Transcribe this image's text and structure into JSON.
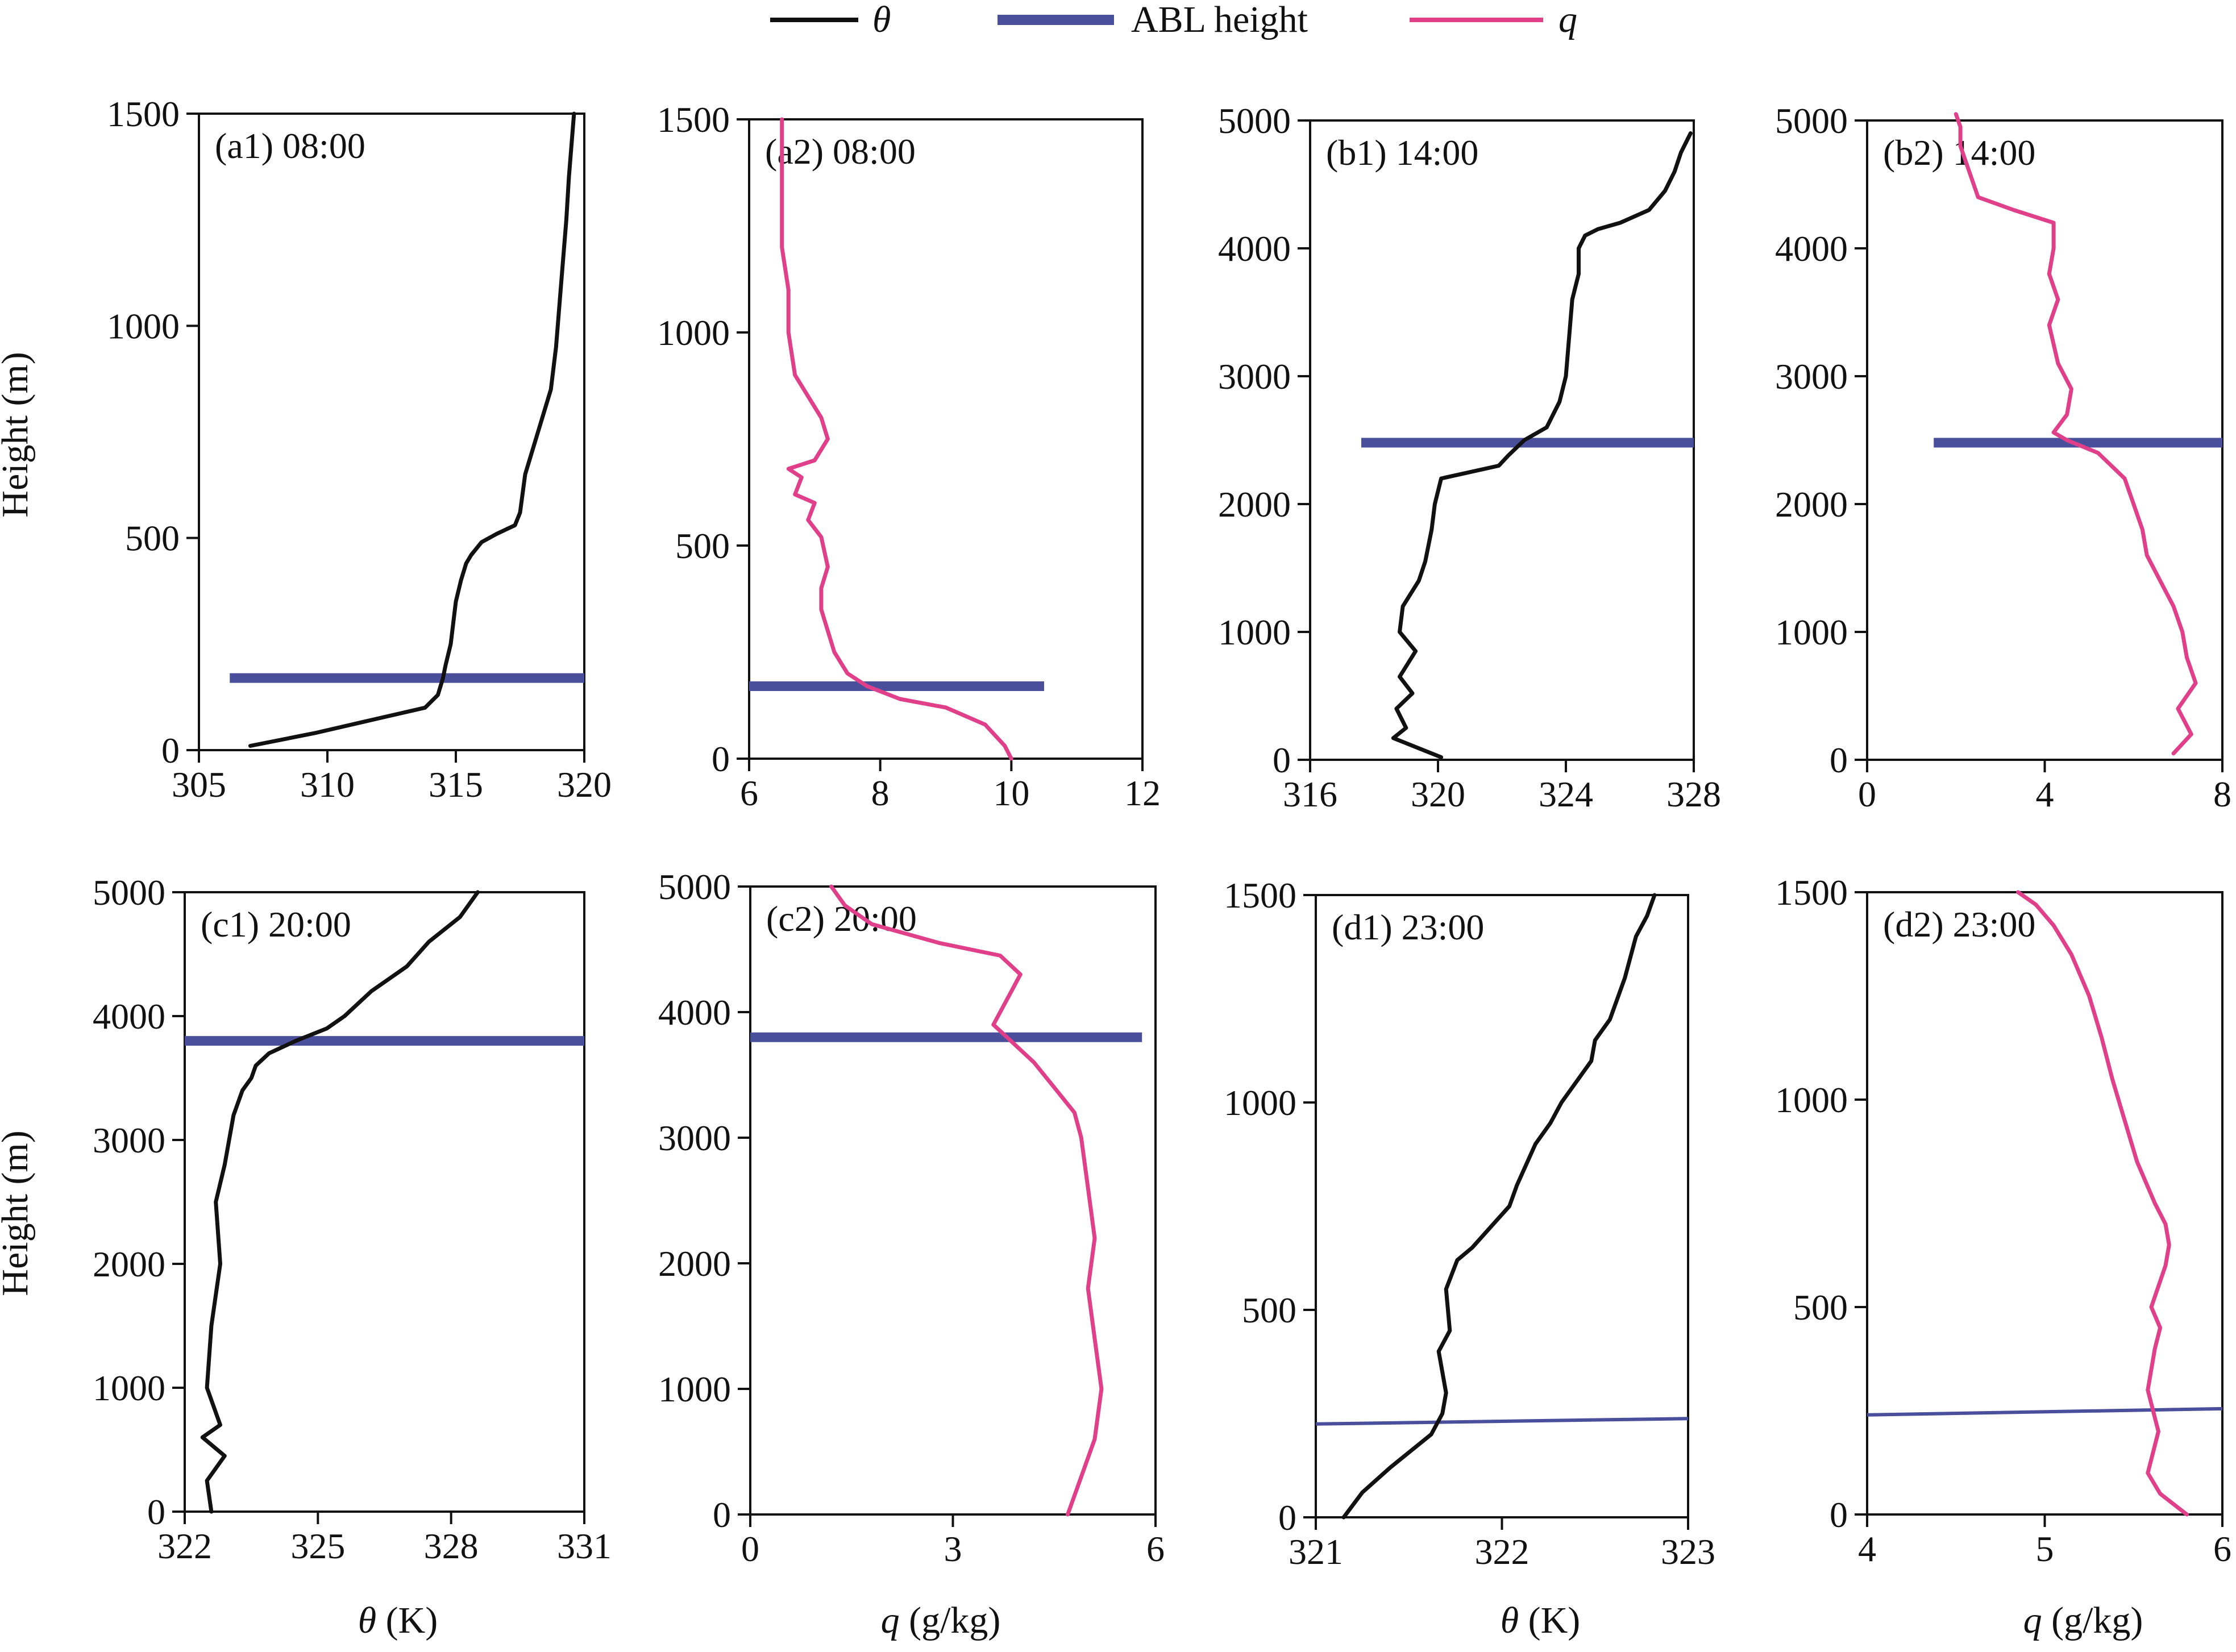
{
  "colors": {
    "theta": "#111111",
    "abl": "#4a4f9c",
    "q": "#e0408a",
    "axis": "#111111"
  },
  "legend": {
    "theta_label": "θ",
    "abl_label": "ABL height",
    "q_label": "q"
  },
  "axis_labels": {
    "height": "Height (m)",
    "theta_symbol": "θ",
    "theta_unit": " (K)",
    "q_symbol": "q",
    "q_unit": " (g/kg)"
  },
  "chart_data": [
    {
      "id": "a1",
      "type": "line",
      "title": "(a1) 08:00",
      "variable": "theta",
      "xlim": [
        305,
        320
      ],
      "xticks": [
        305,
        310,
        315,
        320
      ],
      "ylim": [
        0,
        1500
      ],
      "yticks": [
        0,
        500,
        1000,
        1500
      ],
      "abl": {
        "x": [
          306.2,
          320
        ],
        "y": [
          170,
          170
        ]
      },
      "series": {
        "x": [
          307.0,
          309.5,
          312.0,
          313.8,
          314.3,
          314.5,
          314.6,
          314.8,
          314.9,
          315.0,
          315.2,
          315.3,
          315.4,
          315.6,
          316.0,
          316.6,
          317.3,
          317.5,
          317.7,
          318.2,
          318.7,
          318.9,
          319.1,
          319.3,
          319.4,
          319.6
        ],
        "y": [
          10,
          40,
          75,
          100,
          130,
          170,
          200,
          250,
          300,
          350,
          400,
          420,
          440,
          460,
          490,
          510,
          530,
          560,
          650,
          750,
          850,
          950,
          1100,
          1250,
          1350,
          1500
        ]
      }
    },
    {
      "id": "a2",
      "type": "line",
      "title": "(a2) 08:00",
      "variable": "q",
      "xlim": [
        6,
        12
      ],
      "xticks": [
        6,
        8,
        10,
        12
      ],
      "ylim": [
        0,
        1500
      ],
      "yticks": [
        0,
        500,
        1000,
        1500
      ],
      "abl": {
        "x": [
          6.0,
          10.5
        ],
        "y": [
          170,
          170
        ]
      },
      "series": {
        "x": [
          10.0,
          9.9,
          9.6,
          9.0,
          8.3,
          7.8,
          7.5,
          7.3,
          7.2,
          7.1,
          7.1,
          7.2,
          7.1,
          6.9,
          7.0,
          6.7,
          6.8,
          6.6,
          7.0,
          7.2,
          7.1,
          6.9,
          6.7,
          6.6,
          6.6,
          6.5,
          6.5,
          6.5,
          6.5
        ],
        "y": [
          0,
          30,
          80,
          120,
          140,
          170,
          200,
          250,
          300,
          350,
          400,
          450,
          520,
          560,
          600,
          620,
          660,
          680,
          700,
          750,
          800,
          850,
          900,
          1000,
          1100,
          1200,
          1300,
          1400,
          1500
        ]
      }
    },
    {
      "id": "b1",
      "type": "line",
      "title": "(b1) 14:00",
      "variable": "theta",
      "xlim": [
        316,
        328
      ],
      "xticks": [
        316,
        320,
        324,
        328
      ],
      "ylim": [
        0,
        5000
      ],
      "yticks": [
        0,
        1000,
        2000,
        3000,
        4000,
        5000
      ],
      "abl": {
        "x": [
          317.6,
          328
        ],
        "y": [
          2480,
          2480
        ]
      },
      "series": {
        "x": [
          320.1,
          319.3,
          318.6,
          319.0,
          318.7,
          319.2,
          318.8,
          319.3,
          318.8,
          318.9,
          319.4,
          319.6,
          319.8,
          319.9,
          320.1,
          321.9,
          322.2,
          322.7,
          323.4,
          323.8,
          324.0,
          324.1,
          324.2,
          324.4,
          324.4,
          324.6,
          325.0,
          325.7,
          326.6,
          327.1,
          327.4,
          327.6,
          327.9
        ],
        "y": [
          20,
          100,
          170,
          250,
          400,
          520,
          650,
          850,
          1000,
          1200,
          1400,
          1550,
          1800,
          2000,
          2200,
          2300,
          2380,
          2500,
          2600,
          2800,
          3000,
          3300,
          3600,
          3800,
          4000,
          4100,
          4150,
          4200,
          4300,
          4450,
          4600,
          4750,
          4900
        ]
      }
    },
    {
      "id": "b2",
      "type": "line",
      "title": "(b2) 14:00",
      "variable": "q",
      "xlim": [
        0,
        8
      ],
      "xticks": [
        0,
        4,
        8
      ],
      "ylim": [
        0,
        5000
      ],
      "yticks": [
        0,
        1000,
        2000,
        3000,
        4000,
        5000
      ],
      "abl": {
        "x": [
          1.5,
          8.0
        ],
        "y": [
          2480,
          2480
        ]
      },
      "series": {
        "x": [
          6.9,
          7.3,
          7.0,
          7.4,
          7.2,
          7.1,
          6.9,
          6.6,
          6.3,
          6.2,
          6.0,
          5.8,
          5.2,
          4.5,
          4.2,
          4.5,
          4.6,
          4.3,
          4.1,
          4.3,
          4.1,
          4.2,
          4.2,
          3.3,
          2.5,
          2.3,
          2.1,
          2.1,
          2.0
        ],
        "y": [
          50,
          200,
          400,
          600,
          800,
          1000,
          1200,
          1400,
          1600,
          1800,
          2000,
          2200,
          2400,
          2500,
          2560,
          2700,
          2900,
          3100,
          3400,
          3600,
          3800,
          4000,
          4200,
          4300,
          4400,
          4600,
          4800,
          4950,
          5050
        ]
      }
    },
    {
      "id": "c1",
      "type": "line",
      "title": "(c1) 20:00",
      "variable": "theta",
      "xlim": [
        322,
        331
      ],
      "xticks": [
        322,
        325,
        328,
        331
      ],
      "ylim": [
        0,
        5000
      ],
      "yticks": [
        0,
        1000,
        2000,
        3000,
        4000,
        5000
      ],
      "abl": {
        "x": [
          322,
          331
        ],
        "y": [
          3800,
          3800
        ]
      },
      "series": {
        "x": [
          322.6,
          322.5,
          322.9,
          322.4,
          322.8,
          322.5,
          322.6,
          322.8,
          322.7,
          322.9,
          323.0,
          323.1,
          323.3,
          323.5,
          323.6,
          323.9,
          324.5,
          325.2,
          325.6,
          326.2,
          327.0,
          327.5,
          328.2,
          328.6
        ],
        "y": [
          0,
          250,
          450,
          600,
          700,
          1000,
          1500,
          2000,
          2500,
          2800,
          3000,
          3200,
          3400,
          3500,
          3600,
          3700,
          3800,
          3900,
          4000,
          4200,
          4400,
          4600,
          4800,
          5000
        ]
      }
    },
    {
      "id": "c2",
      "type": "line",
      "title": "(c2) 20:00",
      "variable": "q",
      "xlim": [
        0,
        6
      ],
      "xticks": [
        0,
        3,
        6
      ],
      "ylim": [
        0,
        5000
      ],
      "yticks": [
        0,
        1000,
        2000,
        3000,
        4000,
        5000
      ],
      "abl": {
        "x": [
          0,
          5.8
        ],
        "y": [
          3800,
          3800
        ]
      },
      "series": {
        "x": [
          4.7,
          4.9,
          5.1,
          5.2,
          5.1,
          5.0,
          5.1,
          5.0,
          4.9,
          4.8,
          4.5,
          4.2,
          3.9,
          3.6,
          3.8,
          4.0,
          3.7,
          2.8,
          1.8,
          1.4,
          1.2
        ],
        "y": [
          0,
          300,
          600,
          1000,
          1400,
          1800,
          2200,
          2600,
          3000,
          3200,
          3400,
          3600,
          3750,
          3900,
          4100,
          4300,
          4450,
          4550,
          4700,
          4850,
          5000
        ]
      }
    },
    {
      "id": "d1",
      "type": "line",
      "title": "(d1) 23:00",
      "variable": "theta",
      "xlim": [
        321,
        323
      ],
      "xticks": [
        321,
        322,
        323
      ],
      "ylim": [
        0,
        1500
      ],
      "yticks": [
        0,
        500,
        1000,
        1500
      ],
      "abl": {
        "x": [
          321,
          323
        ],
        "y": [
          225,
          238
        ]
      },
      "series": {
        "x": [
          321.15,
          321.25,
          321.4,
          321.62,
          321.68,
          321.7,
          321.66,
          321.72,
          321.7,
          321.76,
          321.84,
          321.94,
          322.04,
          322.08,
          322.18,
          322.26,
          322.32,
          322.4,
          322.48,
          322.5,
          322.58,
          322.66,
          322.72,
          322.78,
          322.82
        ],
        "y": [
          0,
          60,
          120,
          200,
          250,
          300,
          400,
          450,
          550,
          620,
          650,
          700,
          750,
          800,
          900,
          950,
          1000,
          1050,
          1100,
          1150,
          1200,
          1300,
          1400,
          1450,
          1500
        ]
      }
    },
    {
      "id": "d2",
      "type": "line",
      "title": "(d2) 23:00",
      "variable": "q",
      "xlim": [
        4,
        6
      ],
      "xticks": [
        4,
        5,
        6
      ],
      "ylim": [
        0,
        1500
      ],
      "yticks": [
        0,
        500,
        1000,
        1500
      ],
      "abl": {
        "x": [
          4,
          6
        ],
        "y": [
          240,
          255
        ]
      },
      "series": {
        "x": [
          5.8,
          5.65,
          5.58,
          5.64,
          5.58,
          5.62,
          5.65,
          5.6,
          5.64,
          5.68,
          5.7,
          5.68,
          5.62,
          5.52,
          5.45,
          5.38,
          5.32,
          5.25,
          5.15,
          5.05,
          4.95,
          4.85
        ],
        "y": [
          0,
          50,
          100,
          200,
          300,
          400,
          450,
          500,
          550,
          600,
          650,
          700,
          750,
          850,
          950,
          1050,
          1150,
          1250,
          1350,
          1420,
          1470,
          1500
        ]
      }
    }
  ]
}
